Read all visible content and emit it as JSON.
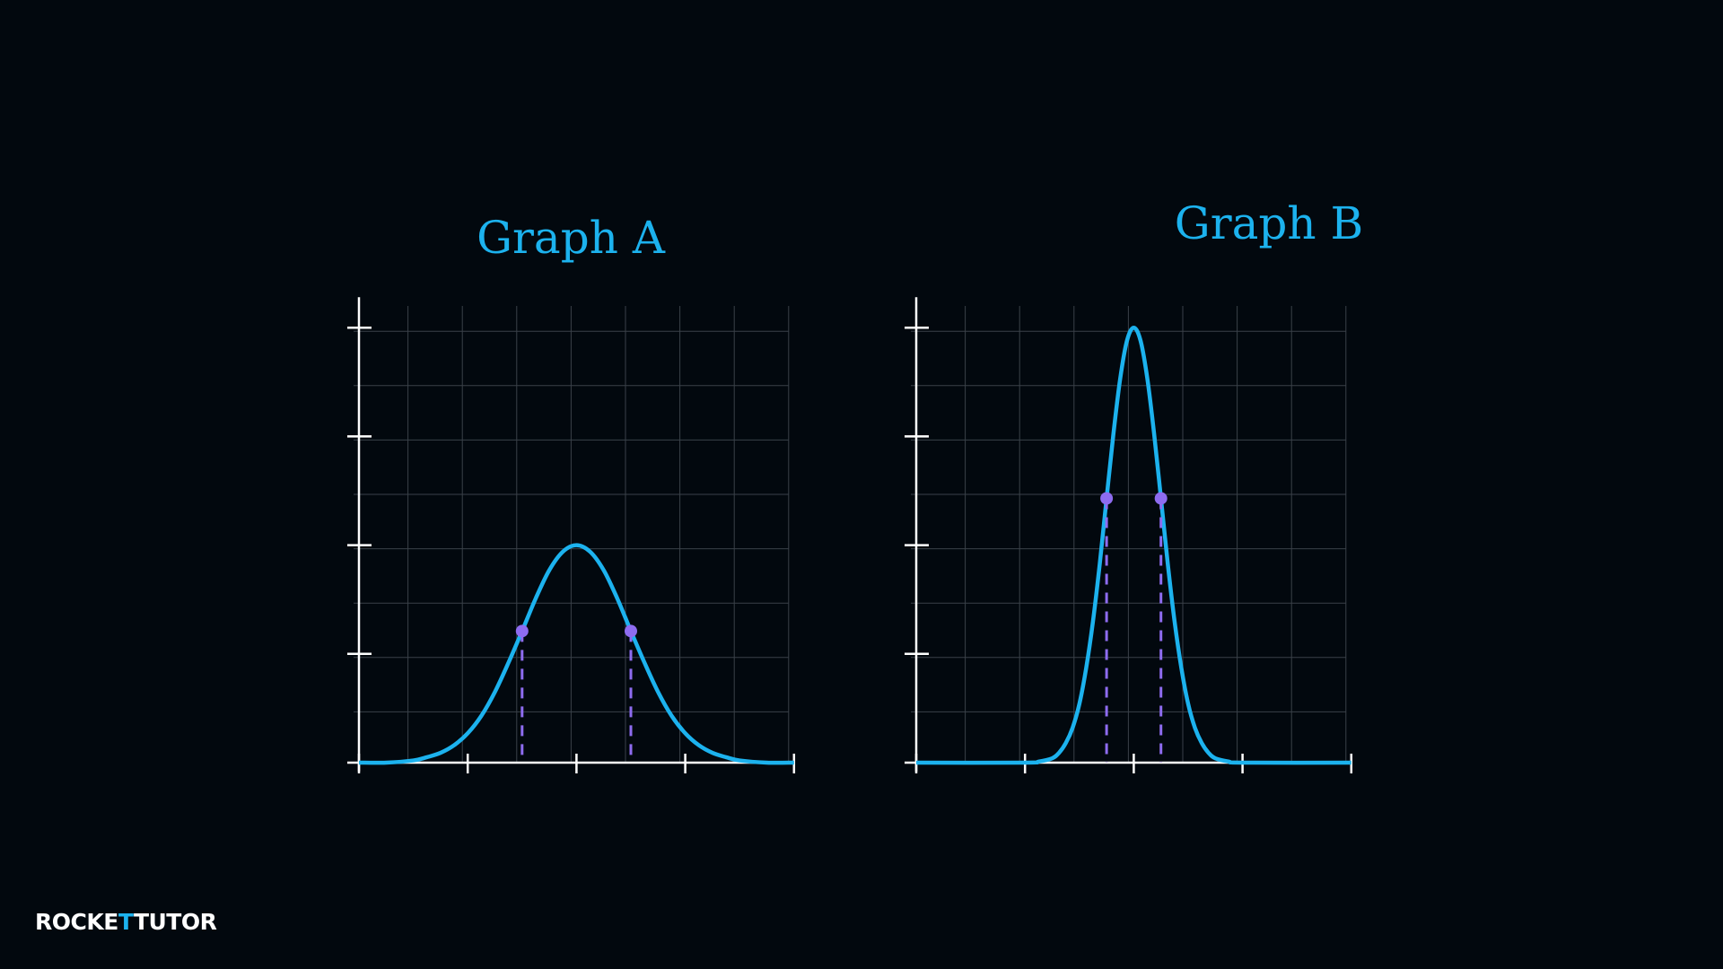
{
  "chart_data": [
    {
      "type": "line",
      "title": "Graph A",
      "color": "#1cb2ee",
      "x": [
        0,
        0.25,
        0.5,
        0.625,
        0.75,
        0.875,
        1,
        1.125,
        1.25,
        1.375,
        1.5,
        1.625,
        1.75,
        1.875,
        2,
        2.125,
        2.25,
        2.375,
        2.5,
        2.625,
        2.75,
        2.875,
        3,
        3.125,
        3.25,
        3.375,
        3.5,
        3.75,
        4
      ],
      "values": [
        0,
        0,
        0.02,
        0.05,
        0.09,
        0.16,
        0.27,
        0.43,
        0.65,
        0.92,
        1.21,
        1.51,
        1.77,
        1.94,
        2,
        1.94,
        1.77,
        1.51,
        1.21,
        0.92,
        0.65,
        0.43,
        0.27,
        0.16,
        0.09,
        0.05,
        0.02,
        0,
        0
      ],
      "points": {
        "x": [
          1.5,
          2.5
        ],
        "values": [
          1.21,
          1.21
        ],
        "color": "#8e6cf0"
      },
      "xlim": [
        0,
        4
      ],
      "ylim": [
        0,
        4
      ],
      "xticks": [
        0,
        1,
        2,
        3,
        4
      ],
      "yticks": [
        0,
        1,
        2,
        3,
        4
      ],
      "xgrid": [
        0.5,
        1,
        1.5,
        2,
        2.5,
        3,
        3.5,
        4
      ],
      "ygrid": [
        0.5,
        1,
        1.5,
        2,
        2.5,
        3,
        3.5,
        4
      ],
      "grid": true
    },
    {
      "type": "line",
      "title": "Graph B",
      "color": "#1cb2ee",
      "x": [
        0,
        1,
        1.125,
        1.25,
        1.3125,
        1.375,
        1.4375,
        1.5,
        1.5625,
        1.625,
        1.6875,
        1.75,
        1.8125,
        1.875,
        1.9375,
        2,
        2.0625,
        2.125,
        2.1875,
        2.25,
        2.3125,
        2.375,
        2.4375,
        2.5,
        2.5625,
        2.625,
        2.6875,
        2.75,
        2.875,
        3,
        4
      ],
      "values": [
        0,
        0,
        0.01,
        0.04,
        0.09,
        0.18,
        0.32,
        0.54,
        0.87,
        1.3,
        1.83,
        2.43,
        3.02,
        3.53,
        3.88,
        4,
        3.88,
        3.53,
        3.02,
        2.43,
        1.83,
        1.3,
        0.87,
        0.54,
        0.32,
        0.18,
        0.09,
        0.04,
        0.01,
        0,
        0
      ],
      "points": {
        "x": [
          1.75,
          2.25
        ],
        "values": [
          2.43,
          2.43
        ],
        "color": "#8e6cf0"
      },
      "xlim": [
        0,
        4
      ],
      "ylim": [
        0,
        4
      ],
      "xticks": [
        0,
        1,
        2,
        3,
        4
      ],
      "yticks": [
        0,
        1,
        2,
        3,
        4
      ],
      "xgrid": [
        0.5,
        1,
        1.5,
        2,
        2.5,
        3,
        3.5,
        4
      ],
      "ygrid": [
        0.5,
        1,
        1.5,
        2,
        2.5,
        3,
        3.5,
        4
      ],
      "grid": true
    }
  ],
  "logo": {
    "parts": [
      "ROCKE",
      "T",
      "TUTO",
      "R"
    ]
  }
}
